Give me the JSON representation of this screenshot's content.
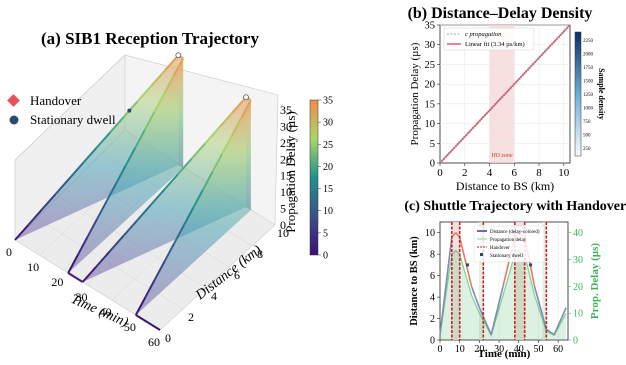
{
  "colors": {
    "accent_red": "#e8515a",
    "handover_red": "#cc2020",
    "dwell_blue": "#2c4a6a",
    "distance_line": "#3a3f8f",
    "delay_green": "#3bb35a",
    "density_dark": "#1a3a66"
  },
  "panel_a": {
    "title": "(a)  SIB1 Reception Trajectory",
    "legend": [
      {
        "label": "Handover",
        "icon": "diamond-icon"
      },
      {
        "label": "Stationary dwell",
        "icon": "circle-icon"
      }
    ],
    "xlabel": "Time (min)",
    "ylabel": "Distance (km)",
    "zlabel": "Propagation Delay (µs)",
    "x_ticks": [
      "0",
      "10",
      "20",
      "30",
      "40",
      "50",
      "60"
    ],
    "y_ticks": [
      "0",
      "2",
      "4",
      "6",
      "8",
      "10"
    ],
    "z_ticks": [
      "0",
      "5",
      "10",
      "15",
      "20",
      "25",
      "30",
      "35"
    ],
    "colorbar_ticks": [
      "0",
      "5",
      "10",
      "15",
      "20",
      "25",
      "30",
      "35"
    ],
    "colorbar_label": "Propagation Delay (µs)"
  },
  "panel_b": {
    "title": "(b)  Distance–Delay Density",
    "xlabel": "Distance to BS (km)",
    "ylabel": "Propagation Delay (µs)",
    "x_ticks": [
      "0",
      "2",
      "4",
      "6",
      "8",
      "10"
    ],
    "y_ticks": [
      "0",
      "5",
      "10",
      "15",
      "20",
      "25",
      "30",
      "35"
    ],
    "legend": [
      {
        "label": "c propagation"
      },
      {
        "label": "Linear fit (3.34 µs/km)"
      }
    ],
    "zone_label": "HO zone",
    "colorbar_label": "Sample density",
    "colorbar_ticks": [
      "250",
      "500",
      "750",
      "1000",
      "1250",
      "1500",
      "1750",
      "2000",
      "2250"
    ]
  },
  "panel_c": {
    "title": "(c)  Shuttle Trajectory with Handovers",
    "xlabel": "Time (min)",
    "ylabel_left": "Distance to BS (km)",
    "ylabel_right": "Prop. Delay (µs)",
    "x_ticks": [
      "0",
      "10",
      "20",
      "30",
      "40",
      "50",
      "60"
    ],
    "y_ticks_left": [
      "0",
      "2",
      "4",
      "6",
      "8",
      "10"
    ],
    "y_ticks_right": [
      "0",
      "10",
      "20",
      "30",
      "40"
    ],
    "legend": [
      {
        "label": "Distance (delay-colored)"
      },
      {
        "label": "Propagation delay"
      },
      {
        "label": "Handover"
      },
      {
        "label": "Stationary dwell"
      }
    ]
  },
  "chart_data": [
    {
      "id": "a",
      "type": "line",
      "title": "(a)  SIB1 Reception Trajectory",
      "xlabel": "Time (min)",
      "ylabel": "Distance (km)",
      "zlabel": "Propagation Delay (µs)",
      "xlim": [
        0,
        60
      ],
      "ylim": [
        0,
        10
      ],
      "zlim": [
        0,
        35
      ],
      "series": [
        {
          "name": "Trajectory",
          "points": [
            {
              "t": 0,
              "d": 0,
              "delay": 0
            },
            {
              "t": 20,
              "d": 10,
              "delay": 33.4
            },
            {
              "t": 22,
              "d": 10,
              "delay": 33.4
            },
            {
              "t": 22,
              "d": 0,
              "delay": 0
            },
            {
              "t": 28,
              "d": 0,
              "delay": 0
            },
            {
              "t": 48,
              "d": 10,
              "delay": 33.4
            },
            {
              "t": 50,
              "d": 10,
              "delay": 33.4
            },
            {
              "t": 50,
              "d": 0,
              "delay": 0
            },
            {
              "t": 60,
              "d": 0,
              "delay": 0
            }
          ]
        }
      ],
      "handover_points": [
        {
          "t": 20,
          "d": 10,
          "delay": 33.4
        },
        {
          "t": 48,
          "d": 10,
          "delay": 33.4
        }
      ],
      "dwell_points": [
        {
          "t": 14,
          "d": 7,
          "delay": 23.4
        }
      ]
    },
    {
      "id": "b",
      "type": "scatter",
      "title": "(b)  Distance–Delay Density",
      "xlabel": "Distance to BS (km)",
      "ylabel": "Propagation Delay (µs)",
      "xlim": [
        0,
        10.5
      ],
      "ylim": [
        0,
        35
      ],
      "fit_slope": 3.34,
      "series": [
        {
          "name": "c propagation",
          "x": [
            0,
            10.5
          ],
          "y": [
            0,
            35.0
          ]
        },
        {
          "name": "Linear fit (3.34 µs/km)",
          "x": [
            0,
            10.5
          ],
          "y": [
            0,
            35.07
          ]
        }
      ],
      "ho_zone": [
        4,
        6
      ]
    },
    {
      "id": "c",
      "type": "line",
      "title": "(c)  Shuttle Trajectory with Handovers",
      "xlabel": "Time (min)",
      "ylabel": "Distance to BS (km)",
      "xlim": [
        0,
        65
      ],
      "ylim": [
        0,
        11
      ],
      "y2lim": [
        0,
        44
      ],
      "series": [
        {
          "name": "Distance (delay-colored)",
          "x": [
            0,
            6,
            8,
            10,
            16,
            20,
            26,
            32,
            38,
            40,
            43,
            48,
            54,
            58,
            64
          ],
          "y": [
            0.5,
            9.6,
            10,
            9.6,
            5,
            3,
            0.5,
            5,
            9.6,
            10,
            9.6,
            5,
            1,
            0.5,
            3
          ]
        },
        {
          "name": "Propagation delay",
          "x": [
            0,
            6,
            8,
            10,
            16,
            20,
            26,
            32,
            38,
            40,
            43,
            48,
            54,
            58,
            64
          ],
          "y": [
            1.7,
            32,
            33.4,
            32,
            16.7,
            10,
            1.7,
            16.7,
            32,
            33.4,
            32,
            16.7,
            3.3,
            1.7,
            10
          ]
        }
      ],
      "handovers_t": [
        6,
        10,
        22,
        38,
        43,
        54
      ],
      "dwell_t": [
        14,
        46
      ]
    }
  ]
}
